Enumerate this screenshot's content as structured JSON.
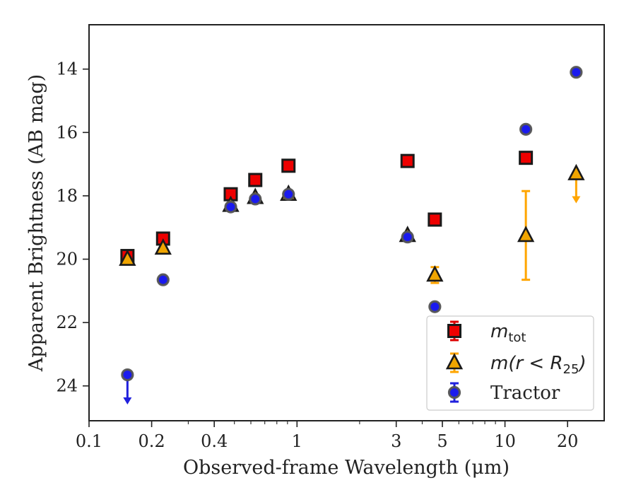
{
  "chart_data": {
    "type": "scatter",
    "xlabel": "Observed-frame Wavelength (μm)",
    "ylabel": "Apparent Brightness (AB mag)",
    "xscale": "log",
    "xlim": [
      0.1,
      30
    ],
    "ylim": [
      25.1,
      12.6
    ],
    "y_inverted": true,
    "x_ticks": [
      {
        "value": 0.1,
        "label": "0.1"
      },
      {
        "value": 0.2,
        "label": "0.2"
      },
      {
        "value": 0.4,
        "label": "0.4"
      },
      {
        "value": 1,
        "label": "1"
      },
      {
        "value": 3,
        "label": "3"
      },
      {
        "value": 5,
        "label": "5"
      },
      {
        "value": 10,
        "label": "10"
      },
      {
        "value": 20,
        "label": "20"
      }
    ],
    "y_ticks": [
      {
        "value": 14,
        "label": "14"
      },
      {
        "value": 16,
        "label": "16"
      },
      {
        "value": 18,
        "label": "18"
      },
      {
        "value": 20,
        "label": "20"
      },
      {
        "value": 22,
        "label": "22"
      },
      {
        "value": 24,
        "label": "24"
      }
    ],
    "grid": false,
    "legend_position": "bottom-right",
    "series": [
      {
        "name": "m_tot",
        "legend_main": "m",
        "legend_sub": "tot",
        "marker": "square",
        "color": "#ee0000",
        "errbar_color": "#dd0000",
        "points": [
          {
            "x": 0.153,
            "y": 19.9
          },
          {
            "x": 0.227,
            "y": 19.35
          },
          {
            "x": 0.48,
            "y": 17.95
          },
          {
            "x": 0.63,
            "y": 17.5
          },
          {
            "x": 0.91,
            "y": 17.05
          },
          {
            "x": 3.4,
            "y": 16.9
          },
          {
            "x": 4.6,
            "y": 18.75
          },
          {
            "x": 12.6,
            "y": 16.8
          }
        ]
      },
      {
        "name": "m(r<R25)",
        "legend_main": "m(r < R",
        "legend_sub": "25",
        "legend_tail": ")",
        "marker": "triangle",
        "color": "#f0a500",
        "errbar_color": "#ffa500",
        "points": [
          {
            "x": 0.153,
            "y": 20.0
          },
          {
            "x": 0.227,
            "y": 19.65
          },
          {
            "x": 0.48,
            "y": 18.3
          },
          {
            "x": 0.63,
            "y": 18.05
          },
          {
            "x": 0.91,
            "y": 17.95
          },
          {
            "x": 3.4,
            "y": 19.25
          },
          {
            "x": 4.6,
            "y": 20.5,
            "err": [
              0.25,
              0.25
            ]
          },
          {
            "x": 12.6,
            "y": 19.25,
            "err": [
              1.4,
              1.4
            ]
          },
          {
            "x": 22,
            "y": 17.3,
            "upper_limit": true
          }
        ]
      },
      {
        "name": "Tractor",
        "legend_main": "Tractor",
        "marker": "circle",
        "color": "#1a1aee",
        "errbar_color": "#2020dd",
        "points": [
          {
            "x": 0.153,
            "y": 23.65,
            "upper_limit": true
          },
          {
            "x": 0.227,
            "y": 20.65
          },
          {
            "x": 0.48,
            "y": 18.35
          },
          {
            "x": 0.63,
            "y": 18.1
          },
          {
            "x": 0.91,
            "y": 17.95
          },
          {
            "x": 3.4,
            "y": 19.3
          },
          {
            "x": 4.6,
            "y": 21.5
          },
          {
            "x": 12.6,
            "y": 15.9
          },
          {
            "x": 22,
            "y": 14.1
          }
        ]
      }
    ]
  }
}
